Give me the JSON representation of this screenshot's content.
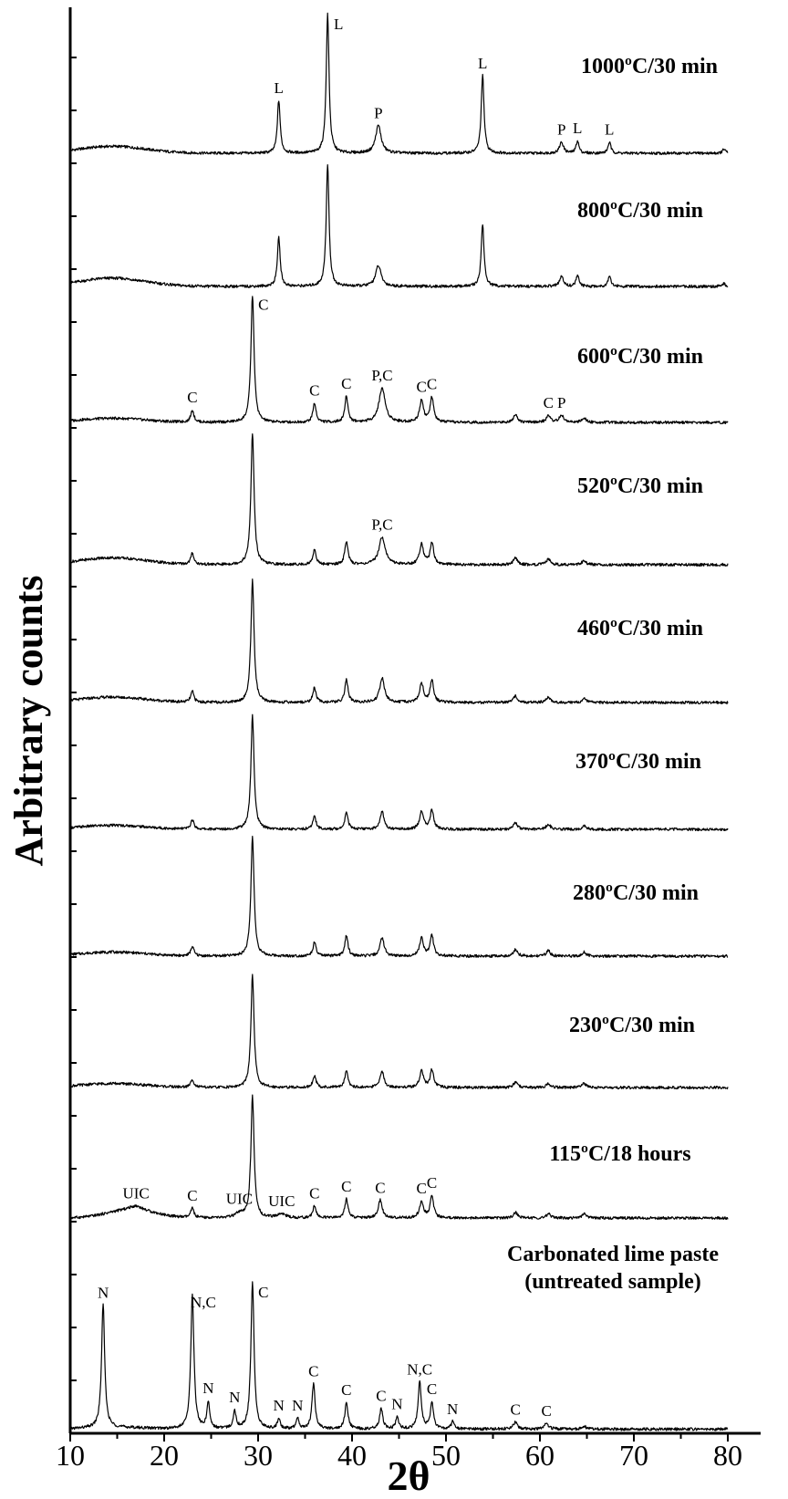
{
  "chart_data": {
    "type": "line",
    "xlabel": "2θ",
    "ylabel": "Arbitrary counts",
    "xlim": [
      10,
      80
    ],
    "x_ticks": [
      10,
      20,
      30,
      40,
      50,
      60,
      70,
      80
    ],
    "grid": false,
    "series": [
      {
        "name": "1000ºC/30 min",
        "name_lines": [
          "1000ºC/30 min"
        ],
        "peaks": [
          {
            "x": 32.2,
            "h": 0.38,
            "w": 0.18,
            "label": "L"
          },
          {
            "x": 37.4,
            "h": 1.0,
            "w": 0.18,
            "label": "L"
          },
          {
            "x": 42.8,
            "h": 0.2,
            "w": 0.35,
            "label": "P"
          },
          {
            "x": 53.9,
            "h": 0.56,
            "w": 0.18,
            "label": "L"
          },
          {
            "x": 62.3,
            "h": 0.08,
            "w": 0.25,
            "label": "P"
          },
          {
            "x": 64.0,
            "h": 0.09,
            "w": 0.18,
            "label": "L"
          },
          {
            "x": 67.4,
            "h": 0.08,
            "w": 0.18,
            "label": "L"
          },
          {
            "x": 79.6,
            "h": 0.03,
            "w": 0.18
          }
        ],
        "bg": [
          0.02,
          0.01
        ],
        "hump": [
          14.5,
          3.5,
          0.05
        ]
      },
      {
        "name": "800ºC/30 min",
        "name_lines": [
          "800ºC/30 min"
        ],
        "peaks": [
          {
            "x": 32.2,
            "h": 0.35,
            "w": 0.18
          },
          {
            "x": 37.4,
            "h": 0.88,
            "w": 0.18
          },
          {
            "x": 42.8,
            "h": 0.15,
            "w": 0.35
          },
          {
            "x": 53.9,
            "h": 0.45,
            "w": 0.18
          },
          {
            "x": 62.3,
            "h": 0.07,
            "w": 0.25
          },
          {
            "x": 64.0,
            "h": 0.08,
            "w": 0.18
          },
          {
            "x": 67.4,
            "h": 0.08,
            "w": 0.18
          },
          {
            "x": 79.6,
            "h": 0.02,
            "w": 0.18
          }
        ],
        "bg": [
          0.02,
          0.01
        ],
        "hump": [
          14.5,
          3.5,
          0.06
        ]
      },
      {
        "name": "600ºC/30 min",
        "name_lines": [
          "600ºC/30 min"
        ],
        "peaks": [
          {
            "x": 23.0,
            "h": 0.09,
            "w": 0.2,
            "label": "C"
          },
          {
            "x": 29.4,
            "h": 0.93,
            "w": 0.2,
            "label": "C"
          },
          {
            "x": 36.0,
            "h": 0.14,
            "w": 0.2,
            "label": "C"
          },
          {
            "x": 39.4,
            "h": 0.19,
            "w": 0.2,
            "label": "C"
          },
          {
            "x": 43.2,
            "h": 0.25,
            "w": 0.4,
            "label": "P,C"
          },
          {
            "x": 47.4,
            "h": 0.16,
            "w": 0.25,
            "label": "C"
          },
          {
            "x": 48.5,
            "h": 0.18,
            "w": 0.22,
            "label": "C"
          },
          {
            "x": 57.4,
            "h": 0.06,
            "w": 0.25
          },
          {
            "x": 60.9,
            "h": 0.05,
            "w": 0.25,
            "label": "C"
          },
          {
            "x": 62.3,
            "h": 0.05,
            "w": 0.3,
            "label": "P"
          },
          {
            "x": 64.7,
            "h": 0.03,
            "w": 0.25
          }
        ],
        "bg": [
          0.02,
          0.01
        ],
        "hump": [
          14.5,
          3.5,
          0.03
        ]
      },
      {
        "name": "520ºC/30 min",
        "name_lines": [
          "520ºC/30 min"
        ],
        "peaks": [
          {
            "x": 23.0,
            "h": 0.08,
            "w": 0.2
          },
          {
            "x": 29.4,
            "h": 0.95,
            "w": 0.2
          },
          {
            "x": 36.0,
            "h": 0.11,
            "w": 0.2
          },
          {
            "x": 39.4,
            "h": 0.17,
            "w": 0.2
          },
          {
            "x": 43.2,
            "h": 0.2,
            "w": 0.4,
            "label": "P,C"
          },
          {
            "x": 47.4,
            "h": 0.15,
            "w": 0.25
          },
          {
            "x": 48.5,
            "h": 0.16,
            "w": 0.22
          },
          {
            "x": 57.4,
            "h": 0.05,
            "w": 0.25
          },
          {
            "x": 60.9,
            "h": 0.04,
            "w": 0.25
          },
          {
            "x": 64.7,
            "h": 0.03,
            "w": 0.25
          }
        ],
        "bg": [
          0.02,
          0.01
        ],
        "hump": [
          14.5,
          3.5,
          0.05
        ]
      },
      {
        "name": "460ºC/30 min",
        "name_lines": [
          "460ºC/30 min"
        ],
        "peaks": [
          {
            "x": 23.0,
            "h": 0.08,
            "w": 0.2
          },
          {
            "x": 29.4,
            "h": 0.9,
            "w": 0.2
          },
          {
            "x": 36.0,
            "h": 0.11,
            "w": 0.2
          },
          {
            "x": 39.4,
            "h": 0.17,
            "w": 0.2
          },
          {
            "x": 43.2,
            "h": 0.18,
            "w": 0.3
          },
          {
            "x": 47.4,
            "h": 0.14,
            "w": 0.25
          },
          {
            "x": 48.5,
            "h": 0.16,
            "w": 0.22
          },
          {
            "x": 57.4,
            "h": 0.05,
            "w": 0.25
          },
          {
            "x": 60.9,
            "h": 0.04,
            "w": 0.25
          },
          {
            "x": 64.7,
            "h": 0.03,
            "w": 0.25
          }
        ],
        "bg": [
          0.02,
          0.01
        ],
        "hump": [
          14.5,
          3.5,
          0.04
        ]
      },
      {
        "name": "370ºC/30 min",
        "name_lines": [
          "370ºC/30 min"
        ],
        "peaks": [
          {
            "x": 23.0,
            "h": 0.07,
            "w": 0.2
          },
          {
            "x": 29.4,
            "h": 0.84,
            "w": 0.2
          },
          {
            "x": 36.0,
            "h": 0.1,
            "w": 0.2
          },
          {
            "x": 39.4,
            "h": 0.13,
            "w": 0.2
          },
          {
            "x": 43.2,
            "h": 0.13,
            "w": 0.25
          },
          {
            "x": 47.4,
            "h": 0.13,
            "w": 0.25
          },
          {
            "x": 48.5,
            "h": 0.14,
            "w": 0.22
          },
          {
            "x": 57.4,
            "h": 0.05,
            "w": 0.25
          },
          {
            "x": 60.9,
            "h": 0.04,
            "w": 0.25
          },
          {
            "x": 64.7,
            "h": 0.03,
            "w": 0.25
          }
        ],
        "bg": [
          0.02,
          0.01
        ],
        "hump": [
          14.5,
          3.5,
          0.03
        ]
      },
      {
        "name": "280ºC/30 min",
        "name_lines": [
          "280ºC/30 min"
        ],
        "peaks": [
          {
            "x": 23.0,
            "h": 0.07,
            "w": 0.2
          },
          {
            "x": 29.4,
            "h": 0.88,
            "w": 0.2
          },
          {
            "x": 36.0,
            "h": 0.1,
            "w": 0.2
          },
          {
            "x": 39.4,
            "h": 0.15,
            "w": 0.2
          },
          {
            "x": 43.2,
            "h": 0.14,
            "w": 0.25
          },
          {
            "x": 47.4,
            "h": 0.13,
            "w": 0.25
          },
          {
            "x": 48.5,
            "h": 0.15,
            "w": 0.22
          },
          {
            "x": 57.4,
            "h": 0.05,
            "w": 0.25
          },
          {
            "x": 60.9,
            "h": 0.04,
            "w": 0.25
          },
          {
            "x": 64.7,
            "h": 0.03,
            "w": 0.25
          }
        ],
        "bg": [
          0.02,
          0.01
        ],
        "hump": [
          14.5,
          3.5,
          0.03
        ]
      },
      {
        "name": "230ºC/30 min",
        "name_lines": [
          "230ºC/30 min"
        ],
        "peaks": [
          {
            "x": 23.0,
            "h": 0.06,
            "w": 0.2
          },
          {
            "x": 29.4,
            "h": 0.83,
            "w": 0.2
          },
          {
            "x": 36.0,
            "h": 0.09,
            "w": 0.2
          },
          {
            "x": 39.4,
            "h": 0.13,
            "w": 0.2
          },
          {
            "x": 43.2,
            "h": 0.12,
            "w": 0.25
          },
          {
            "x": 47.4,
            "h": 0.12,
            "w": 0.25
          },
          {
            "x": 48.5,
            "h": 0.13,
            "w": 0.22
          },
          {
            "x": 57.4,
            "h": 0.04,
            "w": 0.25
          },
          {
            "x": 60.9,
            "h": 0.03,
            "w": 0.25
          },
          {
            "x": 64.7,
            "h": 0.03,
            "w": 0.25
          }
        ],
        "bg": [
          0.02,
          0.01
        ],
        "hump": [
          14.5,
          3.5,
          0.03
        ]
      },
      {
        "name": "115ºC/18 hours",
        "name_lines": [
          "115ºC/18 hours"
        ],
        "peaks": [
          {
            "x": 17.0,
            "h": 0.03,
            "w": 0.8,
            "label": "UIC"
          },
          {
            "x": 23.0,
            "h": 0.07,
            "w": 0.2,
            "label": "C"
          },
          {
            "x": 28.0,
            "h": 0.03,
            "w": 0.5,
            "label": "UIC"
          },
          {
            "x": 29.4,
            "h": 0.9,
            "w": 0.2
          },
          {
            "x": 32.5,
            "h": 0.03,
            "w": 0.5,
            "label": "UIC"
          },
          {
            "x": 36.0,
            "h": 0.09,
            "w": 0.2,
            "label": "C"
          },
          {
            "x": 39.4,
            "h": 0.14,
            "w": 0.2,
            "label": "C"
          },
          {
            "x": 43.0,
            "h": 0.13,
            "w": 0.25,
            "label": "C"
          },
          {
            "x": 47.4,
            "h": 0.12,
            "w": 0.25,
            "label": "C"
          },
          {
            "x": 48.5,
            "h": 0.16,
            "w": 0.22,
            "label": "C"
          },
          {
            "x": 57.4,
            "h": 0.04,
            "w": 0.25
          },
          {
            "x": 60.9,
            "h": 0.03,
            "w": 0.25
          },
          {
            "x": 64.7,
            "h": 0.03,
            "w": 0.25
          }
        ],
        "bg": [
          0.02,
          0.01
        ],
        "hump": [
          16.5,
          2.5,
          0.06
        ]
      },
      {
        "name": "Carbonated lime paste (untreated sample)",
        "name_lines": [
          "Carbonated lime paste",
          "(untreated sample)"
        ],
        "peaks": [
          {
            "x": 13.5,
            "h": 0.84,
            "w": 0.2,
            "label": "N"
          },
          {
            "x": 23.0,
            "h": 0.93,
            "w": 0.2,
            "label": "N,C"
          },
          {
            "x": 24.7,
            "h": 0.18,
            "w": 0.18,
            "label": "N"
          },
          {
            "x": 27.5,
            "h": 0.12,
            "w": 0.18,
            "label": "N"
          },
          {
            "x": 29.4,
            "h": 1.0,
            "w": 0.2,
            "label": "C"
          },
          {
            "x": 32.2,
            "h": 0.07,
            "w": 0.18,
            "label": "N"
          },
          {
            "x": 34.2,
            "h": 0.07,
            "w": 0.18,
            "label": "N"
          },
          {
            "x": 35.9,
            "h": 0.31,
            "w": 0.2,
            "label": "C"
          },
          {
            "x": 39.4,
            "h": 0.18,
            "w": 0.2,
            "label": "C"
          },
          {
            "x": 43.1,
            "h": 0.14,
            "w": 0.2,
            "label": "C"
          },
          {
            "x": 44.8,
            "h": 0.08,
            "w": 0.18,
            "label": "N"
          },
          {
            "x": 47.2,
            "h": 0.32,
            "w": 0.2,
            "label": "N,C"
          },
          {
            "x": 48.5,
            "h": 0.18,
            "w": 0.2,
            "label": "C"
          },
          {
            "x": 50.7,
            "h": 0.05,
            "w": 0.18,
            "label": "N"
          },
          {
            "x": 57.4,
            "h": 0.05,
            "w": 0.25,
            "label": "C"
          },
          {
            "x": 60.7,
            "h": 0.04,
            "w": 0.25,
            "label": "C"
          },
          {
            "x": 64.7,
            "h": 0.02,
            "w": 0.25
          }
        ],
        "bg": [
          0.01,
          0.01
        ],
        "hump": [
          15.0,
          3.0,
          0.01
        ]
      }
    ]
  }
}
